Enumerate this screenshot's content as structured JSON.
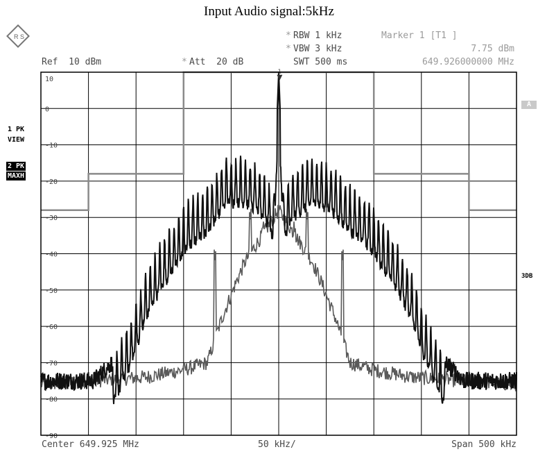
{
  "title": "Input Audio signal:5kHz",
  "logo_text": "R S",
  "header": {
    "ref": "Ref  10 dBm",
    "att_star": "*",
    "att": "Att  20 dB",
    "rbw_star": "*",
    "rbw": "RBW 1 kHz",
    "vbw_star": "*",
    "vbw": "VBW 3 kHz",
    "swt": "SWT 500 ms",
    "marker_label": "Marker 1 [T1 ]",
    "marker_level": "7.75 dBm",
    "marker_freq": "649.926000000 MHz"
  },
  "left_tags": {
    "trace1_line1": "1 PK",
    "trace1_line2": "VIEW",
    "trace2_line1": "2 PK",
    "trace2_line2": "MAXH"
  },
  "right_tags": {
    "a": "A",
    "db3": "3DB"
  },
  "footer": {
    "center": "Center 649.925 MHz",
    "div": "50 kHz/",
    "span": "Span 500 kHz"
  },
  "chart_data": {
    "type": "line",
    "x_unit": "kHz offset from center",
    "xlim": [
      -250,
      250
    ],
    "ylim": [
      -90,
      10
    ],
    "y_ticks": [
      10,
      0,
      -10,
      -20,
      -30,
      -40,
      -50,
      -60,
      -70,
      -80,
      -90
    ],
    "y_tick_labels": [
      "10",
      "0",
      "-10",
      "-20",
      "-30",
      "-40",
      "-50",
      "-60",
      "-70",
      "-80",
      "-90"
    ],
    "grid": true,
    "marker": {
      "label": "1",
      "x": 1,
      "y": 7.75
    },
    "limit_line": {
      "color": "#8a8a8a",
      "x": [
        -250,
        -200,
        -200,
        -100,
        -100,
        100,
        100,
        200,
        200,
        250
      ],
      "y": [
        -28,
        -28,
        -18,
        -18,
        10,
        10,
        -18,
        -18,
        -28,
        -28
      ]
    },
    "series": [
      {
        "color": "#111111",
        "envelope_x": [
          -250,
          -195,
          -175,
          -155,
          -140,
          -125,
          -110,
          -95,
          -75,
          -55,
          -35,
          -15,
          -5,
          0,
          5,
          15,
          35,
          55,
          75,
          95,
          110,
          125,
          140,
          155,
          175,
          195,
          250
        ],
        "envelope_y": [
          -75,
          -75,
          -70,
          -58,
          -46,
          -38,
          -32,
          -26,
          -22,
          -14,
          -14,
          -18,
          -24,
          10,
          -24,
          -18,
          -14,
          -16,
          -22,
          -26,
          -32,
          -38,
          -46,
          -58,
          -70,
          -75,
          -75
        ],
        "comb_spacing_khz": 5,
        "comb_depth_db": 12
      },
      {
        "color": "#5a5a5a",
        "envelope_x": [
          -250,
          -140,
          -100,
          -75,
          -60,
          -45,
          -35,
          -25,
          -10,
          0,
          10,
          25,
          35,
          45,
          60,
          75,
          100,
          140,
          250
        ],
        "envelope_y": [
          -76,
          -74,
          -72,
          -70,
          -58,
          -48,
          -42,
          -38,
          -32,
          -28,
          -32,
          -38,
          -42,
          -48,
          -58,
          -70,
          -72,
          -74,
          -76
        ],
        "spurs": [
          {
            "x": -67,
            "y": -42
          },
          {
            "x": -30,
            "y": -31
          },
          {
            "x": -17,
            "y": -35
          },
          {
            "x": 17,
            "y": -35
          },
          {
            "x": 30,
            "y": -31
          },
          {
            "x": 67,
            "y": -42
          },
          {
            "x": -100,
            "y": -74
          },
          {
            "x": 100,
            "y": -74
          }
        ]
      }
    ]
  }
}
